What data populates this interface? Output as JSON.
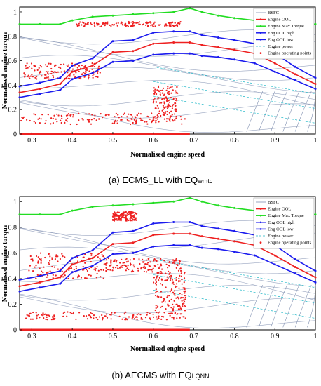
{
  "colors": {
    "bsfc": "#7f8fb0",
    "ool": "#ee2020",
    "max_torque": "#22dd22",
    "ool_high": "#1a1aee",
    "ool_low": "#1a1aee",
    "power": "#22b8c8",
    "points": "#ee2020"
  },
  "chart_data": [
    {
      "type": "scatter",
      "caption_main": "(a) ECMS_LL with EQ",
      "caption_sub": "wmtc",
      "xlabel": "Normalised engine speed",
      "ylabel": "Normalised engine torque",
      "xlim": [
        0.27,
        1.0
      ],
      "ylim": [
        0,
        1.04
      ],
      "xticks": [
        "0.3",
        "0.4",
        "0.5",
        "0.6",
        "0.7",
        "0.8",
        "0.9",
        "1"
      ],
      "yticks": [
        "0",
        "0.2",
        "0.4",
        "0.6",
        "0.8",
        "1"
      ],
      "legend": [
        "BSFC",
        "Engine OOL",
        "Engine Max Torque",
        "Eng OOL high",
        "Eng OOL low",
        "Engine power",
        "Engine operating points"
      ],
      "legend_position": "top-right",
      "series": [
        {
          "name": "Engine Max Torque",
          "x": [
            0.27,
            0.32,
            0.37,
            0.4,
            0.45,
            0.5,
            0.55,
            0.6,
            0.65,
            0.69,
            0.72,
            0.76,
            0.8,
            0.85,
            0.9,
            0.95,
            1.0
          ],
          "y": [
            0.9,
            0.9,
            0.9,
            0.93,
            0.96,
            0.97,
            0.98,
            0.99,
            1.0,
            1.03,
            1.0,
            0.97,
            0.95,
            0.93,
            0.91,
            0.9,
            0.9
          ]
        },
        {
          "name": "Eng OOL high",
          "x": [
            0.27,
            0.32,
            0.37,
            0.4,
            0.45,
            0.5,
            0.55,
            0.6,
            0.65,
            0.69,
            0.72,
            0.76,
            0.8,
            0.85,
            0.9,
            0.95,
            1.0
          ],
          "y": [
            0.39,
            0.42,
            0.46,
            0.56,
            0.62,
            0.76,
            0.77,
            0.83,
            0.84,
            0.84,
            0.81,
            0.79,
            0.77,
            0.74,
            0.66,
            0.55,
            0.46
          ]
        },
        {
          "name": "Engine OOL",
          "x": [
            0.27,
            0.32,
            0.37,
            0.4,
            0.45,
            0.5,
            0.55,
            0.6,
            0.65,
            0.69,
            0.72,
            0.76,
            0.8,
            0.85,
            0.9,
            0.95,
            1.0
          ],
          "y": [
            0.34,
            0.37,
            0.41,
            0.51,
            0.56,
            0.67,
            0.68,
            0.74,
            0.75,
            0.75,
            0.73,
            0.71,
            0.69,
            0.66,
            0.58,
            0.49,
            0.41
          ]
        },
        {
          "name": "Eng OOL low",
          "x": [
            0.27,
            0.32,
            0.37,
            0.4,
            0.45,
            0.5,
            0.55,
            0.6,
            0.65,
            0.69,
            0.72,
            0.76,
            0.8,
            0.85,
            0.9,
            0.95,
            1.0
          ],
          "y": [
            0.3,
            0.33,
            0.36,
            0.45,
            0.5,
            0.59,
            0.6,
            0.65,
            0.66,
            0.66,
            0.64,
            0.63,
            0.61,
            0.58,
            0.51,
            0.44,
            0.37
          ]
        }
      ],
      "operating_point_clusters": [
        {
          "x": [
            0.27,
            0.69
          ],
          "y": [
            0.0,
            0.0
          ]
        },
        {
          "x": [
            0.27,
            0.68
          ],
          "y": [
            0.08,
            0.17
          ]
        },
        {
          "x": [
            0.28,
            0.47
          ],
          "y": [
            0.45,
            0.58
          ]
        },
        {
          "x": [
            0.41,
            0.67
          ],
          "y": [
            0.88,
            0.92
          ]
        },
        {
          "x": [
            0.6,
            0.66
          ],
          "y": [
            0.1,
            0.4
          ]
        }
      ]
    },
    {
      "type": "scatter",
      "caption_main": "(b) AECMS with EQ",
      "caption_sub": "LQNN",
      "xlabel": "Normalised engine speed",
      "ylabel": "Normalised engine torque",
      "xlim": [
        0.27,
        1.0
      ],
      "ylim": [
        0,
        1.04
      ],
      "xticks": [
        "0.3",
        "0.4",
        "0.5",
        "0.6",
        "0.7",
        "0.8",
        "0.9",
        "1"
      ],
      "yticks": [
        "0",
        "0.2",
        "0.4",
        "0.6",
        "0.8",
        "1"
      ],
      "legend": [
        "BSFC",
        "Engine OOL",
        "Engine Max Torque",
        "Eng OOL high",
        "Eng OOL low",
        "Engine power",
        "Engine operating points"
      ],
      "legend_position": "top-right",
      "series": [
        {
          "name": "Engine Max Torque",
          "x": [
            0.27,
            0.32,
            0.37,
            0.4,
            0.45,
            0.5,
            0.55,
            0.6,
            0.65,
            0.69,
            0.72,
            0.76,
            0.8,
            0.85,
            0.9,
            0.95,
            1.0
          ],
          "y": [
            0.9,
            0.9,
            0.9,
            0.93,
            0.96,
            0.97,
            0.98,
            0.99,
            1.0,
            1.03,
            1.0,
            0.97,
            0.95,
            0.93,
            0.91,
            0.9,
            0.9
          ]
        },
        {
          "name": "Eng OOL high",
          "x": [
            0.27,
            0.32,
            0.37,
            0.4,
            0.45,
            0.5,
            0.55,
            0.6,
            0.65,
            0.69,
            0.72,
            0.76,
            0.8,
            0.85,
            0.9,
            0.95,
            1.0
          ],
          "y": [
            0.39,
            0.42,
            0.46,
            0.56,
            0.62,
            0.76,
            0.77,
            0.83,
            0.84,
            0.84,
            0.81,
            0.79,
            0.77,
            0.74,
            0.66,
            0.55,
            0.46
          ]
        },
        {
          "name": "Engine OOL",
          "x": [
            0.27,
            0.32,
            0.37,
            0.4,
            0.45,
            0.5,
            0.55,
            0.6,
            0.65,
            0.69,
            0.72,
            0.76,
            0.8,
            0.85,
            0.9,
            0.95,
            1.0
          ],
          "y": [
            0.34,
            0.37,
            0.41,
            0.51,
            0.56,
            0.67,
            0.68,
            0.74,
            0.75,
            0.75,
            0.73,
            0.71,
            0.69,
            0.66,
            0.58,
            0.49,
            0.41
          ]
        },
        {
          "name": "Eng OOL low",
          "x": [
            0.27,
            0.32,
            0.37,
            0.4,
            0.45,
            0.5,
            0.55,
            0.6,
            0.65,
            0.69,
            0.72,
            0.76,
            0.8,
            0.85,
            0.9,
            0.95,
            1.0
          ],
          "y": [
            0.3,
            0.33,
            0.36,
            0.45,
            0.5,
            0.59,
            0.6,
            0.65,
            0.66,
            0.66,
            0.64,
            0.63,
            0.61,
            0.58,
            0.51,
            0.44,
            0.37
          ]
        }
      ],
      "operating_point_clusters": [
        {
          "x": [
            0.27,
            0.69
          ],
          "y": [
            0.0,
            0.0
          ]
        },
        {
          "x": [
            0.28,
            0.68
          ],
          "y": [
            0.08,
            0.14
          ]
        },
        {
          "x": [
            0.29,
            0.48
          ],
          "y": [
            0.4,
            0.6
          ]
        },
        {
          "x": [
            0.48,
            0.67
          ],
          "y": [
            0.45,
            0.56
          ]
        },
        {
          "x": [
            0.5,
            0.56
          ],
          "y": [
            0.85,
            0.92
          ]
        },
        {
          "x": [
            0.6,
            0.68
          ],
          "y": [
            0.15,
            0.45
          ]
        }
      ]
    }
  ]
}
